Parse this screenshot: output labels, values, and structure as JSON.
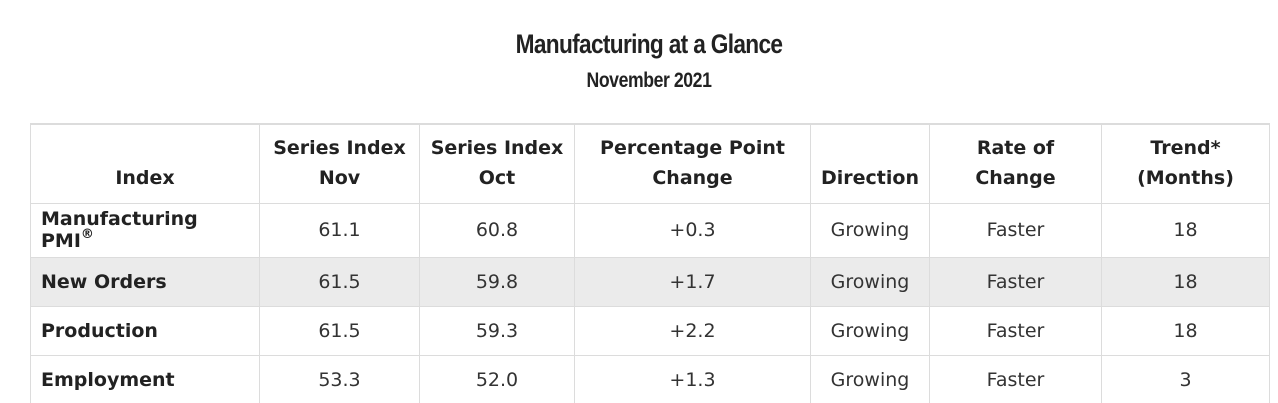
{
  "title": "Manufacturing at a Glance",
  "subtitle": "November 2021",
  "table": {
    "headers": {
      "index": "Index",
      "nov": [
        "Series Index",
        "Nov"
      ],
      "oct": [
        "Series Index",
        "Oct"
      ],
      "change": [
        "Percentage Point",
        "Change"
      ],
      "direction": "Direction",
      "rate": "Rate of Change",
      "trend": [
        "Trend*",
        "(Months)"
      ]
    },
    "rows": [
      {
        "name": "Manufacturing PMI",
        "reg_mark": "®",
        "nov": "61.1",
        "oct": "60.8",
        "change": "+0.3",
        "direction": "Growing",
        "rate": "Faster",
        "trend": "18"
      },
      {
        "name": "New Orders",
        "nov": "61.5",
        "oct": "59.8",
        "change": "+1.7",
        "direction": "Growing",
        "rate": "Faster",
        "trend": "18"
      },
      {
        "name": "Production",
        "nov": "61.5",
        "oct": "59.3",
        "change": "+2.2",
        "direction": "Growing",
        "rate": "Faster",
        "trend": "18"
      },
      {
        "name": "Employment",
        "nov": "53.3",
        "oct": "52.0",
        "change": "+1.3",
        "direction": "Growing",
        "rate": "Faster",
        "trend": "3"
      }
    ]
  }
}
